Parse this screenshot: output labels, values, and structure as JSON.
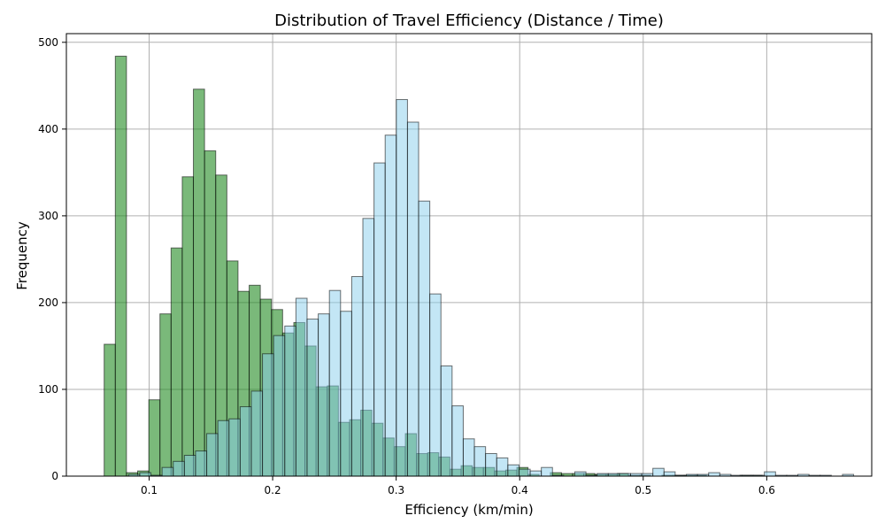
{
  "chart_data": {
    "type": "bar",
    "title": "Distribution of Travel Efficiency (Distance / Time)",
    "xlabel": "Efficiency (km/min)",
    "ylabel": "Frequency",
    "xlim": [
      0.033,
      0.685
    ],
    "ylim": [
      0,
      510
    ],
    "xticks": [
      0.1,
      0.2,
      0.3,
      0.4,
      0.5,
      0.6
    ],
    "xtick_labels": [
      "0.1",
      "0.2",
      "0.3",
      "0.4",
      "0.5",
      "0.6"
    ],
    "yticks": [
      0,
      100,
      200,
      300,
      400,
      500
    ],
    "ytick_labels": [
      "0",
      "100",
      "200",
      "300",
      "400",
      "500"
    ],
    "grid": true,
    "series": [
      {
        "color": "#228b22",
        "opacity": 0.6,
        "bin_start": 0.0636,
        "bin_width": 0.00903,
        "values": [
          152,
          484,
          4,
          6,
          88,
          187,
          263,
          345,
          446,
          375,
          347,
          248,
          213,
          220,
          204,
          192,
          165,
          177,
          150,
          103,
          104,
          62,
          65,
          76,
          61,
          44,
          34,
          49,
          26,
          27,
          22,
          8,
          12,
          10,
          10,
          6,
          7,
          10,
          2,
          0,
          4,
          3,
          3,
          3,
          2,
          2,
          3,
          1,
          1,
          0,
          1,
          1,
          1,
          1,
          0,
          0,
          0,
          1,
          1,
          0,
          0,
          0,
          0,
          0,
          0,
          0
        ]
      },
      {
        "color": "#87ceeb",
        "opacity": 0.5,
        "bin_start": 0.0834,
        "bin_width": 0.00903,
        "values": [
          2,
          4,
          1,
          10,
          17,
          24,
          29,
          49,
          64,
          66,
          80,
          98,
          141,
          162,
          173,
          205,
          181,
          187,
          214,
          190,
          230,
          297,
          361,
          393,
          434,
          408,
          317,
          210,
          127,
          81,
          43,
          34,
          26,
          21,
          13,
          8,
          6,
          10,
          1,
          0,
          5,
          1,
          3,
          3,
          3,
          3,
          3,
          9,
          5,
          1,
          2,
          2,
          4,
          2,
          1,
          1,
          1,
          5,
          1,
          1,
          2,
          1,
          1,
          0,
          2,
          0,
          0,
          0,
          0,
          0,
          0,
          0,
          1
        ]
      }
    ]
  }
}
